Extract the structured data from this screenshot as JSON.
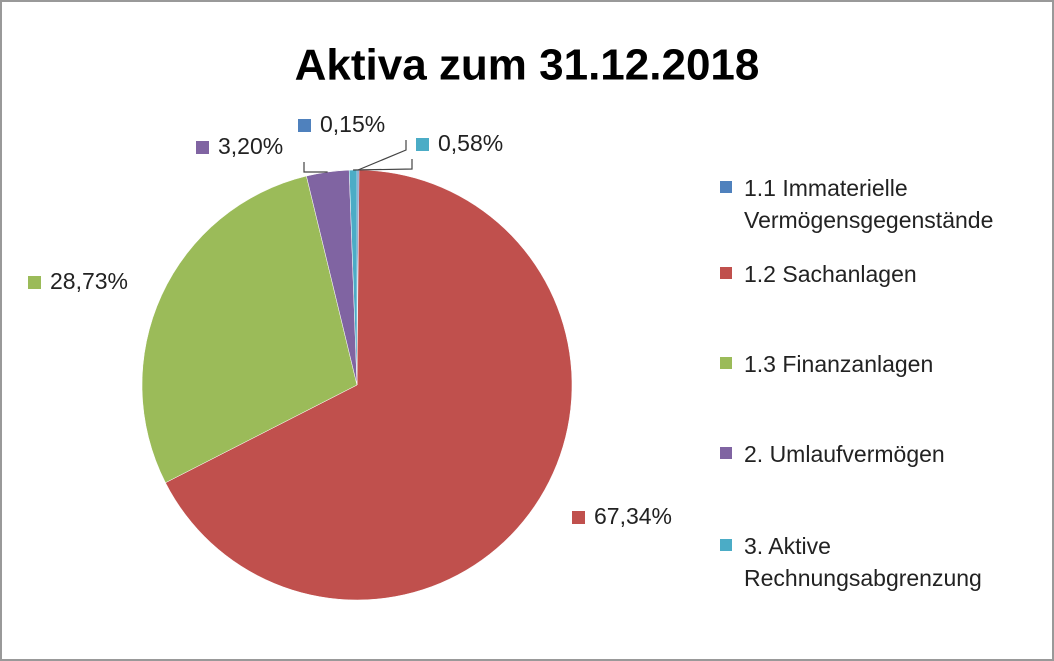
{
  "chart_data": {
    "type": "pie",
    "title": "Aktiva zum 31.12.2018",
    "categories": [
      "1.1 Immaterielle Vermögensgegenstände",
      "1.2 Sachanlagen",
      "1.3 Finanzanlagen",
      "2. Umlaufvermögen",
      "3. Aktive Rechnungsabgrenzung"
    ],
    "values": [
      0.15,
      67.34,
      28.73,
      3.2,
      0.58
    ],
    "value_labels": [
      "0,15%",
      "67,34%",
      "28,73%",
      "3,20%",
      "0,58%"
    ],
    "colors": [
      "#4f81bd",
      "#c0504d",
      "#9bbb59",
      "#8064a2",
      "#4bacc6"
    ],
    "legend": "right"
  }
}
